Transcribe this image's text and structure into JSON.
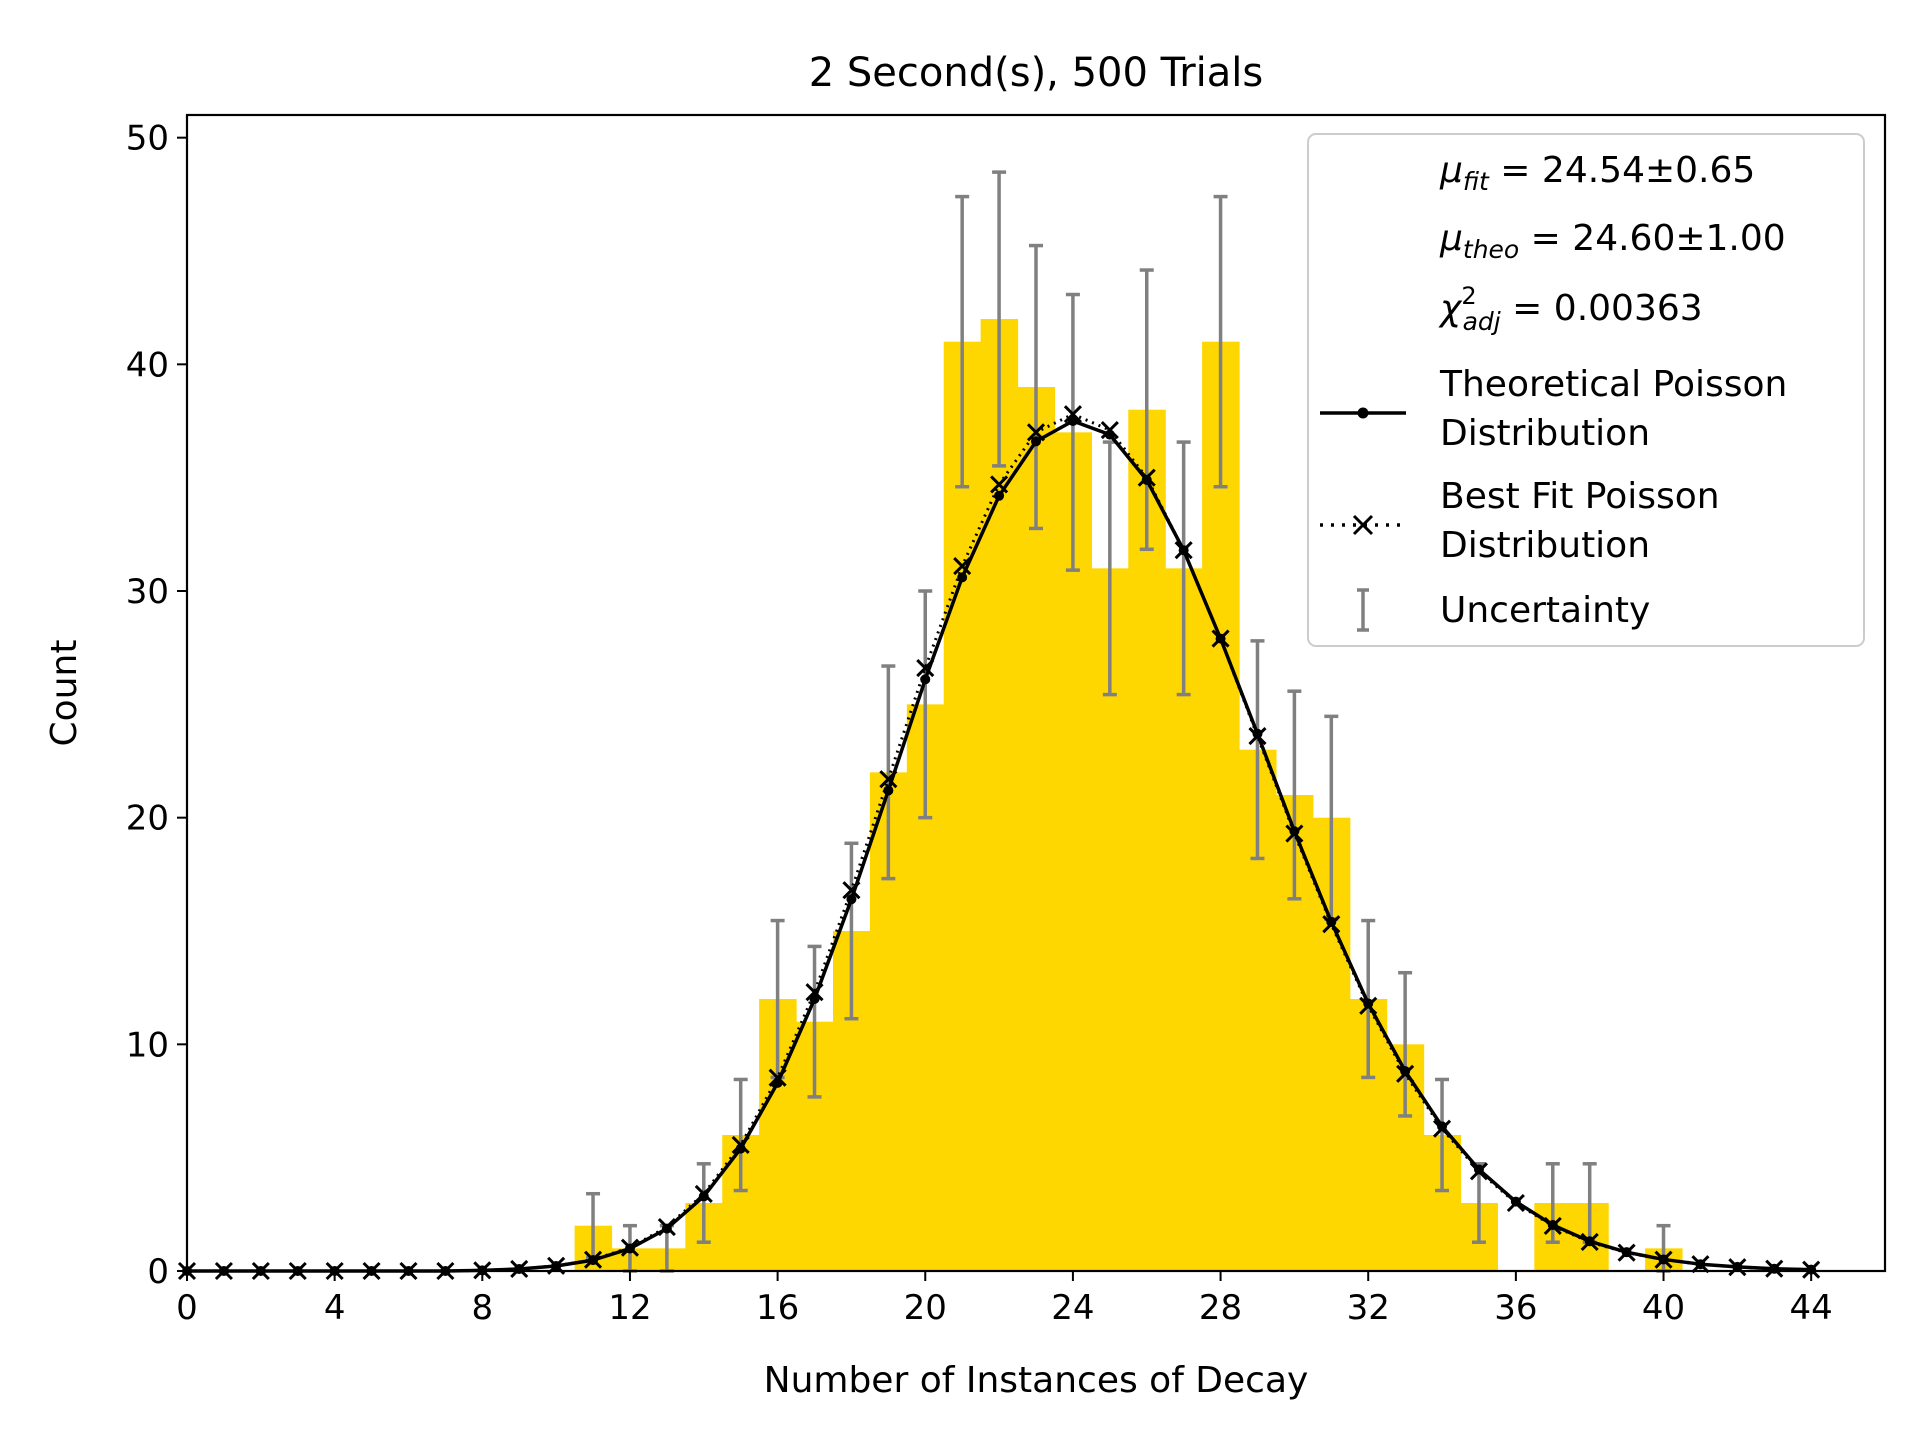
{
  "chart_data": {
    "type": "bar",
    "title": "2 Second(s), 500 Trials",
    "xlabel": "Number of Instances of Decay",
    "ylabel": "Count",
    "xlim": [
      0,
      46
    ],
    "ylim": [
      0,
      51
    ],
    "grid": false,
    "legend_position": "top-right",
    "x_ticks": [
      0,
      4,
      8,
      12,
      16,
      20,
      24,
      28,
      32,
      36,
      40,
      44
    ],
    "y_ticks": [
      0,
      10,
      20,
      30,
      40,
      50
    ],
    "histogram": {
      "name": "Counts",
      "color": "#FFD700",
      "x": [
        11,
        12,
        13,
        14,
        15,
        16,
        17,
        18,
        19,
        20,
        21,
        22,
        23,
        24,
        25,
        26,
        27,
        28,
        29,
        30,
        31,
        32,
        33,
        34,
        35,
        37,
        38,
        40
      ],
      "values": [
        2,
        1,
        1,
        3,
        6,
        12,
        11,
        15,
        22,
        25,
        41,
        42,
        39,
        37,
        31,
        38,
        31,
        41,
        23,
        21,
        20,
        12,
        10,
        6,
        3,
        3,
        3,
        1
      ]
    },
    "error_bars": {
      "name": "Uncertainty",
      "color": "#808080",
      "x": [
        11,
        12,
        13,
        14,
        15,
        16,
        17,
        18,
        19,
        20,
        21,
        22,
        23,
        24,
        25,
        26,
        27,
        28,
        29,
        30,
        31,
        32,
        33,
        34,
        35,
        37,
        38,
        40
      ],
      "y": [
        2,
        1,
        1,
        3,
        6,
        12,
        11,
        15,
        22,
        25,
        41,
        42,
        39,
        37,
        31,
        38,
        31,
        41,
        23,
        21,
        20,
        12,
        10,
        6,
        3,
        3,
        3,
        1
      ],
      "err": [
        1.41,
        1.0,
        1.0,
        1.73,
        2.45,
        3.46,
        3.32,
        3.87,
        4.69,
        5.0,
        6.4,
        6.48,
        6.24,
        6.08,
        5.57,
        6.16,
        5.57,
        6.4,
        4.8,
        4.58,
        4.47,
        3.46,
        3.16,
        2.45,
        1.73,
        1.73,
        1.73,
        1.0
      ]
    },
    "series": [
      {
        "name": "Theoretical Poisson Distribution",
        "color": "#000000",
        "style": "solid-dot",
        "x": [
          0,
          1,
          2,
          3,
          4,
          5,
          6,
          7,
          8,
          9,
          10,
          11,
          12,
          13,
          14,
          15,
          16,
          17,
          18,
          19,
          20,
          21,
          22,
          23,
          24,
          25,
          26,
          27,
          28,
          29,
          30,
          31,
          32,
          33,
          34,
          35,
          36,
          37,
          38,
          39,
          40,
          41,
          42,
          43,
          44
        ],
        "values": [
          0.0,
          0.0,
          0.0,
          0.0,
          0.0,
          0.0,
          0.0,
          0.0,
          0.03,
          0.09,
          0.22,
          0.48,
          0.99,
          1.87,
          3.29,
          5.4,
          8.3,
          12.0,
          16.4,
          21.2,
          26.1,
          30.6,
          34.2,
          36.6,
          37.5,
          36.9,
          34.9,
          31.8,
          27.9,
          23.7,
          19.4,
          15.4,
          11.8,
          8.82,
          6.38,
          4.48,
          3.06,
          2.03,
          1.31,
          0.83,
          0.51,
          0.3,
          0.18,
          0.1,
          0.06
        ]
      },
      {
        "name": "Best Fit Poisson Distribution",
        "color": "#000000",
        "style": "dotted-x",
        "x": [
          0,
          1,
          2,
          3,
          4,
          5,
          6,
          7,
          8,
          9,
          10,
          11,
          12,
          13,
          14,
          15,
          16,
          17,
          18,
          19,
          20,
          21,
          22,
          23,
          24,
          25,
          26,
          27,
          28,
          29,
          30,
          31,
          32,
          33,
          34,
          35,
          36,
          37,
          38,
          39,
          40,
          41,
          42,
          43,
          44
        ],
        "values": [
          0.0,
          0.0,
          0.0,
          0.0,
          0.0,
          0.0,
          0.0,
          0.0,
          0.03,
          0.09,
          0.23,
          0.5,
          1.03,
          1.94,
          3.4,
          5.56,
          8.53,
          12.3,
          16.8,
          21.7,
          26.6,
          31.1,
          34.7,
          37.0,
          37.8,
          37.1,
          35.0,
          31.8,
          27.9,
          23.6,
          19.3,
          15.3,
          11.7,
          8.7,
          6.28,
          4.4,
          3.0,
          1.99,
          1.28,
          0.81,
          0.5,
          0.3,
          0.17,
          0.1,
          0.06
        ]
      }
    ]
  },
  "legend": {
    "mu_fit_sym": "μ",
    "mu_fit_sub": "fit",
    "mu_fit_value": " = 24.54±0.65",
    "mu_theo_sym": "μ",
    "mu_theo_sub": "theo",
    "mu_theo_value": " = 24.60±1.00",
    "chi_sym": "χ",
    "chi_sup": "2",
    "chi_sub": "adj",
    "chi_value": " = 0.00363",
    "theo_line1": "Theoretical Poisson",
    "theo_line2": "Distribution",
    "fit_line1": "Best Fit Poisson",
    "fit_line2": "Distribution",
    "unc_label": "Uncertainty"
  }
}
